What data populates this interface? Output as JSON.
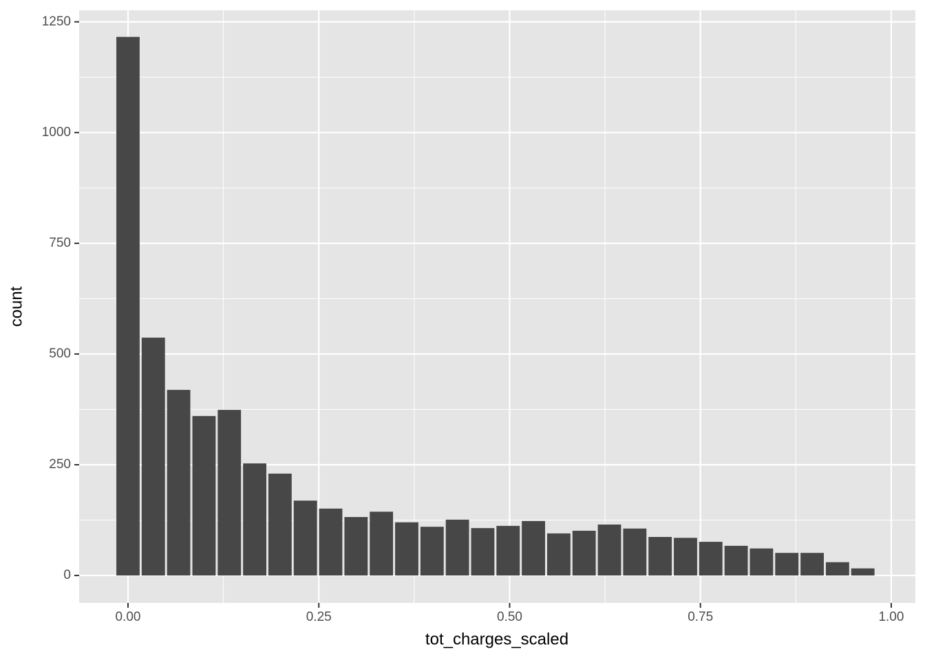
{
  "chart_data": {
    "type": "histogram",
    "x_label": "tot_charges_scaled",
    "y_label": "count",
    "bins": [
      -0.0166,
      0.0166,
      0.0498,
      0.083,
      0.1162,
      0.1494,
      0.1826,
      0.2158,
      0.249,
      0.2822,
      0.3154,
      0.3486,
      0.3818,
      0.415,
      0.4482,
      0.4814,
      0.5146,
      0.5478,
      0.581,
      0.6142,
      0.6474,
      0.6806,
      0.7138,
      0.747,
      0.7802,
      0.8134,
      0.8466,
      0.8798,
      0.913,
      0.9462,
      0.9794
    ],
    "values": [
      1216,
      537,
      419,
      360,
      374,
      253,
      230,
      169,
      151,
      132,
      144,
      120,
      110,
      126,
      107,
      112,
      123,
      95,
      101,
      115,
      106,
      87,
      85,
      76,
      67,
      61,
      51,
      51,
      30,
      16
    ],
    "color": "#474747",
    "xlim": [
      -0.064,
      1.0316
    ],
    "ylim": [
      -62,
      1276
    ],
    "xticks": [
      {
        "value": 0,
        "label": "0.00"
      },
      {
        "value": 0.25,
        "label": "0.25"
      },
      {
        "value": 0.5,
        "label": "0.50"
      },
      {
        "value": 0.75,
        "label": "0.75"
      },
      {
        "value": 1,
        "label": "1.00"
      }
    ],
    "yticks": [
      0,
      250,
      500,
      750,
      1000,
      1250
    ],
    "grid": true
  }
}
